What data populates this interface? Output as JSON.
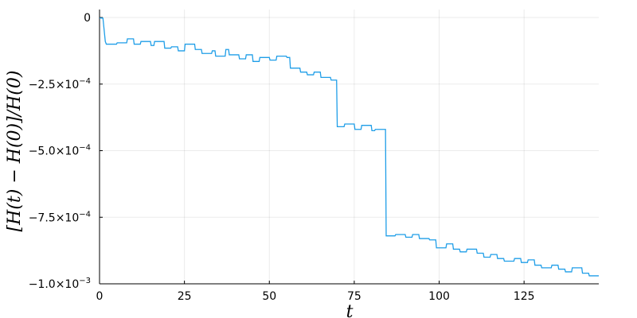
{
  "chart_data": {
    "type": "line",
    "xlabel": "t",
    "ylabel": "[H(t) − H(0)]/H(0)",
    "xlim": [
      0,
      147
    ],
    "ylim": [
      -0.001,
      3e-05
    ],
    "x_ticks": [
      0,
      25,
      50,
      75,
      100,
      125
    ],
    "x_tick_labels": [
      "0",
      "25",
      "50",
      "75",
      "100",
      "125"
    ],
    "y_ticks": [
      0,
      -0.00025,
      -0.0005,
      -0.00075,
      -0.001
    ],
    "y_tick_labels": [
      {
        "mantissa": "0",
        "exponent": ""
      },
      {
        "mantissa": "−2.5×10",
        "exponent": "−4"
      },
      {
        "mantissa": "−5.0×10",
        "exponent": "−4"
      },
      {
        "mantissa": "−7.5×10",
        "exponent": "−4"
      },
      {
        "mantissa": "−1.0×10",
        "exponent": "−3"
      }
    ],
    "grid": true,
    "legend": false,
    "line_color": "#1f9ee8",
    "series": [
      {
        "x": [
          0,
          1,
          1.7,
          2,
          5,
          5.2,
          8,
          8.2,
          10,
          10.2,
          12,
          12.2,
          15,
          15.2,
          16,
          16.2,
          19,
          19.2,
          21,
          21.2,
          23,
          23.2,
          25,
          25.2,
          28,
          28.2,
          30,
          30.2,
          33,
          33.2,
          34,
          34.2,
          37,
          37.2,
          38,
          38.2,
          41,
          41.2,
          43,
          43.2,
          45,
          45.2,
          47,
          47.2,
          50,
          50.2,
          52,
          52.2,
          55,
          55.2,
          56,
          56.2,
          59,
          59.2,
          61,
          61.2,
          63,
          63.2,
          65,
          65.2,
          68,
          68.2,
          69.8,
          70,
          72,
          72.2,
          75,
          75.2,
          77,
          77.2,
          80,
          80.2,
          81,
          81.2,
          84.2,
          84.4,
          87,
          87.2,
          90,
          90.2,
          92,
          92.2,
          94,
          94.2,
          97,
          97.2,
          99,
          99.2,
          102,
          102.2,
          104,
          104.2,
          106,
          106.2,
          108,
          108.2,
          111,
          111.2,
          113,
          113.2,
          115,
          115.2,
          117,
          117.2,
          119,
          119.2,
          122,
          122.2,
          124,
          124.2,
          126,
          126.2,
          128,
          128.2,
          130,
          130.2,
          133,
          133.2,
          135,
          135.2,
          137,
          137.2,
          139,
          139.2,
          142,
          142.2,
          144,
          144.2,
          147
        ],
        "y": [
          -2e-06,
          -2e-06,
          -9e-05,
          -0.0001,
          -0.0001,
          -9.5e-05,
          -9.5e-05,
          -8e-05,
          -8e-05,
          -0.0001,
          -0.0001,
          -9e-05,
          -9e-05,
          -0.000105,
          -0.000105,
          -9e-05,
          -9e-05,
          -0.000115,
          -0.000115,
          -0.00011,
          -0.00011,
          -0.000125,
          -0.000125,
          -0.0001,
          -0.0001,
          -0.00012,
          -0.00012,
          -0.000135,
          -0.000135,
          -0.000125,
          -0.000125,
          -0.000145,
          -0.000145,
          -0.00012,
          -0.00012,
          -0.00014,
          -0.00014,
          -0.000155,
          -0.000155,
          -0.00014,
          -0.00014,
          -0.000165,
          -0.000165,
          -0.00015,
          -0.00015,
          -0.00016,
          -0.00016,
          -0.000145,
          -0.000145,
          -0.00015,
          -0.00015,
          -0.00019,
          -0.00019,
          -0.000205,
          -0.000205,
          -0.000215,
          -0.000215,
          -0.000205,
          -0.000205,
          -0.000225,
          -0.000225,
          -0.000235,
          -0.000235,
          -0.00041,
          -0.00041,
          -0.0004,
          -0.0004,
          -0.00042,
          -0.00042,
          -0.000405,
          -0.000405,
          -0.000425,
          -0.000425,
          -0.00042,
          -0.00042,
          -0.00082,
          -0.00082,
          -0.000815,
          -0.000815,
          -0.000825,
          -0.000825,
          -0.000815,
          -0.000815,
          -0.00083,
          -0.00083,
          -0.000835,
          -0.000835,
          -0.000865,
          -0.000865,
          -0.00085,
          -0.00085,
          -0.00087,
          -0.00087,
          -0.00088,
          -0.00088,
          -0.00087,
          -0.00087,
          -0.000885,
          -0.000885,
          -0.0009,
          -0.0009,
          -0.00089,
          -0.00089,
          -0.000905,
          -0.000905,
          -0.000915,
          -0.000915,
          -0.000905,
          -0.000905,
          -0.00092,
          -0.00092,
          -0.00091,
          -0.00091,
          -0.00093,
          -0.00093,
          -0.00094,
          -0.00094,
          -0.00093,
          -0.00093,
          -0.000945,
          -0.000945,
          -0.000955,
          -0.000955,
          -0.00094,
          -0.00094,
          -0.00096,
          -0.00096,
          -0.00097,
          -0.00097
        ]
      }
    ]
  }
}
